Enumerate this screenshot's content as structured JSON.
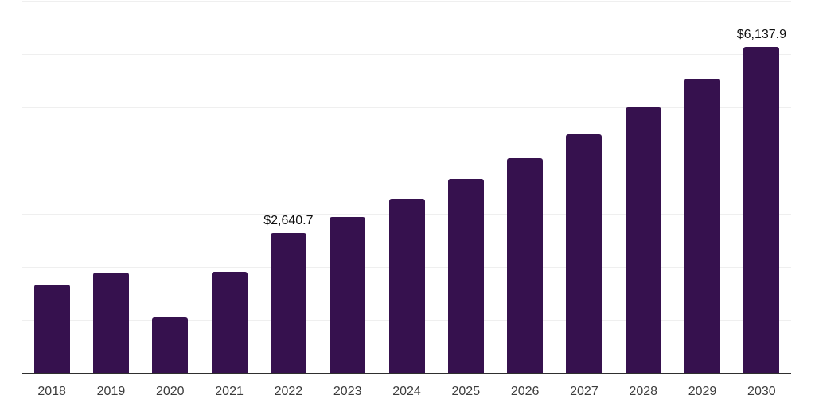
{
  "chart": {
    "background_color": "#ffffff",
    "bar_color": "#36114E",
    "grid_color": "#efefef",
    "axis_color": "#2f2f2f",
    "tick_label_color": "#3c3c3c",
    "data_label_color": "#101010"
  },
  "chart_data": {
    "type": "bar",
    "title": "",
    "xlabel": "",
    "ylabel": "",
    "categories": [
      "2018",
      "2019",
      "2020",
      "2021",
      "2022",
      "2023",
      "2024",
      "2025",
      "2026",
      "2027",
      "2028",
      "2029",
      "2030"
    ],
    "values": [
      1680,
      1895,
      1065,
      1910,
      2640.7,
      2940,
      3290,
      3655,
      4050,
      4500,
      5000,
      5545,
      6137.9
    ],
    "data_labels": {
      "2022": "$2,640.7",
      "2030": "$6,137.9"
    },
    "ylim": [
      0,
      7000
    ],
    "grid_interval": 1000,
    "grid": "horizontal-only",
    "y_axis_labels": "none",
    "legend": "none",
    "currency_prefix": "$"
  }
}
